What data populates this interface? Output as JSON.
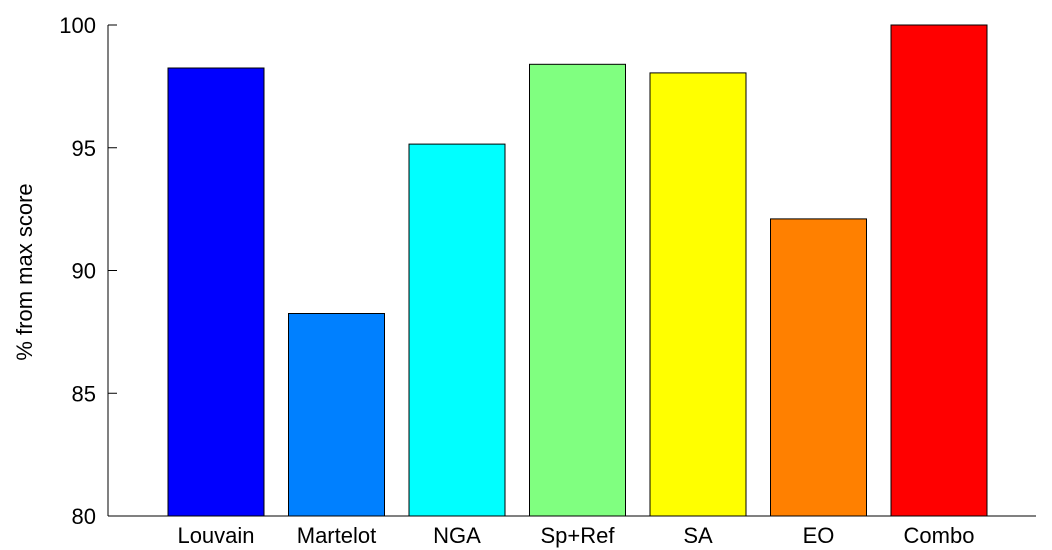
{
  "chart_data": {
    "type": "bar",
    "title": "",
    "xlabel": "",
    "ylabel": "% from max score",
    "categories": [
      "Louvain",
      "Martelot",
      "NGA",
      "Sp+Ref",
      "SA",
      "EO",
      "Combo"
    ],
    "values": [
      98.25,
      88.25,
      95.15,
      98.4,
      98.05,
      92.1,
      100.0
    ],
    "colors": [
      "#0000ff",
      "#0080ff",
      "#00ffff",
      "#80ff80",
      "#ffff00",
      "#ff8000",
      "#ff0000"
    ],
    "ylim": [
      80,
      100
    ],
    "yticks": [
      80,
      85,
      90,
      95,
      100
    ],
    "grid": false,
    "legend": "none"
  }
}
